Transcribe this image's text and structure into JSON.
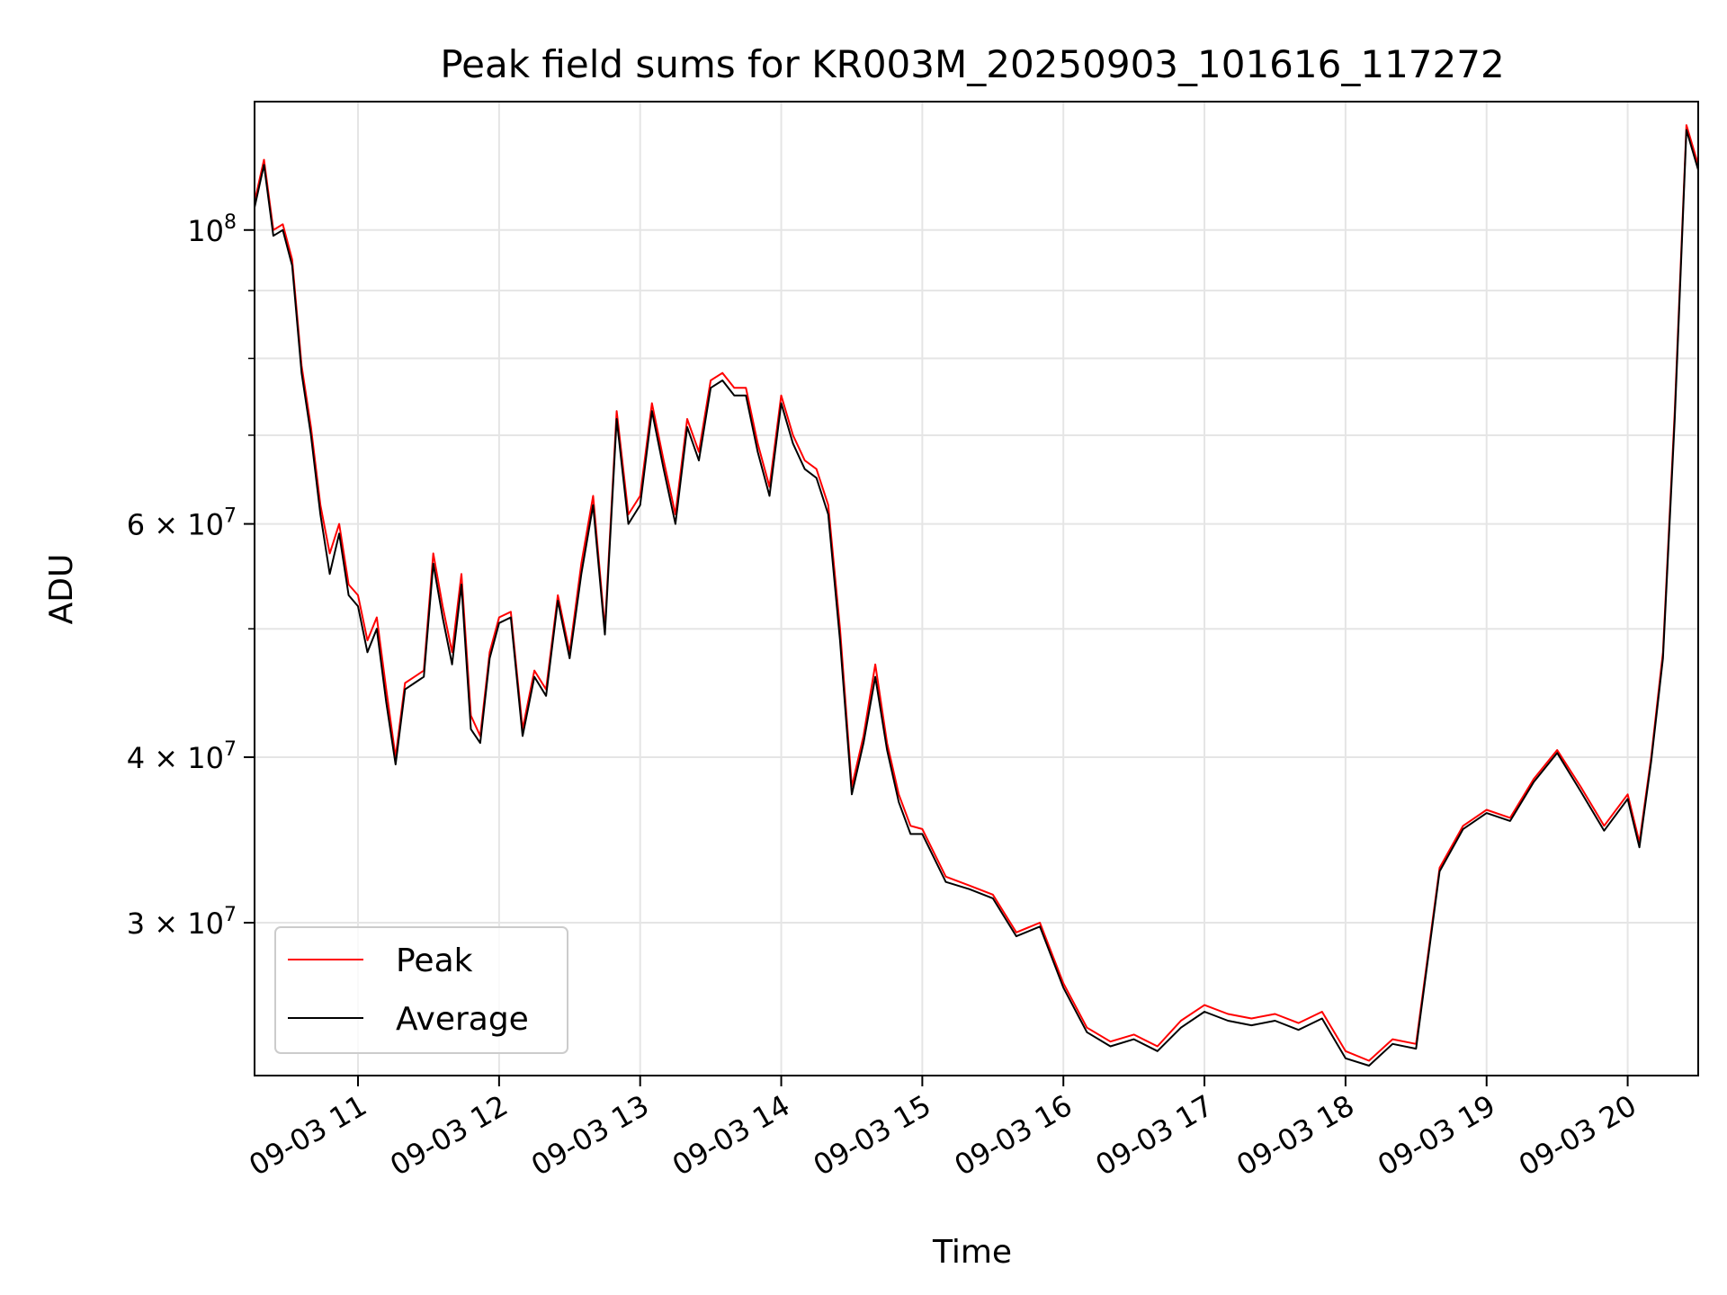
{
  "chart_data": {
    "type": "line",
    "title": "Peak field sums for KR003M_20250903_101616_117272",
    "xlabel": "Time",
    "ylabel": "ADU",
    "yscale": "log",
    "xlim": [
      "09-03 10:16",
      "09-03 20:30"
    ],
    "ylim": [
      23000000,
      125000000
    ],
    "x_tick_labels": [
      "09-03 11",
      "09-03 12",
      "09-03 13",
      "09-03 14",
      "09-03 15",
      "09-03 16",
      "09-03 17",
      "09-03 18",
      "09-03 19",
      "09-03 20"
    ],
    "x_ticks": [
      "09-03 11:00",
      "09-03 12:00",
      "09-03 13:00",
      "09-03 14:00",
      "09-03 15:00",
      "09-03 16:00",
      "09-03 17:00",
      "09-03 18:00",
      "09-03 19:00",
      "09-03 20:00"
    ],
    "y_major_ticks": [
      {
        "value": 30000000,
        "base": "3 × 10",
        "exp": "7"
      },
      {
        "value": 40000000,
        "base": "4 × 10",
        "exp": "7"
      },
      {
        "value": 60000000,
        "base": "6 × 10",
        "exp": "7"
      },
      {
        "value": 100000000,
        "base": "10",
        "exp": "8"
      }
    ],
    "y_minor_ticks": [
      50000000,
      70000000,
      80000000,
      90000000
    ],
    "grid": true,
    "legend_position": "lower-left",
    "series": [
      {
        "name": "Peak",
        "color": "#ff0000"
      },
      {
        "name": "Average",
        "color": "#000000"
      }
    ],
    "x": [
      "09-03 10:16",
      "09-03 10:20",
      "09-03 10:24",
      "09-03 10:28",
      "09-03 10:32",
      "09-03 10:36",
      "09-03 10:40",
      "09-03 10:44",
      "09-03 10:48",
      "09-03 10:52",
      "09-03 10:56",
      "09-03 11:00",
      "09-03 11:04",
      "09-03 11:08",
      "09-03 11:12",
      "09-03 11:16",
      "09-03 11:20",
      "09-03 11:24",
      "09-03 11:28",
      "09-03 11:32",
      "09-03 11:36",
      "09-03 11:40",
      "09-03 11:44",
      "09-03 11:48",
      "09-03 11:52",
      "09-03 11:56",
      "09-03 12:00",
      "09-03 12:05",
      "09-03 12:10",
      "09-03 12:15",
      "09-03 12:20",
      "09-03 12:25",
      "09-03 12:30",
      "09-03 12:35",
      "09-03 12:40",
      "09-03 12:45",
      "09-03 12:50",
      "09-03 12:55",
      "09-03 13:00",
      "09-03 13:05",
      "09-03 13:10",
      "09-03 13:15",
      "09-03 13:20",
      "09-03 13:25",
      "09-03 13:30",
      "09-03 13:35",
      "09-03 13:40",
      "09-03 13:45",
      "09-03 13:50",
      "09-03 13:55",
      "09-03 14:00",
      "09-03 14:05",
      "09-03 14:10",
      "09-03 14:15",
      "09-03 14:20",
      "09-03 14:25",
      "09-03 14:30",
      "09-03 14:35",
      "09-03 14:40",
      "09-03 14:45",
      "09-03 14:50",
      "09-03 14:55",
      "09-03 15:00",
      "09-03 15:10",
      "09-03 15:20",
      "09-03 15:30",
      "09-03 15:40",
      "09-03 15:50",
      "09-03 16:00",
      "09-03 16:10",
      "09-03 16:20",
      "09-03 16:30",
      "09-03 16:40",
      "09-03 16:50",
      "09-03 17:00",
      "09-03 17:10",
      "09-03 17:20",
      "09-03 17:30",
      "09-03 17:40",
      "09-03 17:50",
      "09-03 18:00",
      "09-03 18:10",
      "09-03 18:20",
      "09-03 18:30",
      "09-03 18:40",
      "09-03 18:50",
      "09-03 19:00",
      "09-03 19:10",
      "09-03 19:20",
      "09-03 19:30",
      "09-03 19:40",
      "09-03 19:50",
      "09-03 20:00",
      "09-03 20:05",
      "09-03 20:10",
      "09-03 20:15",
      "09-03 20:20",
      "09-03 20:25",
      "09-03 20:30"
    ],
    "peak": [
      105000000,
      113000000,
      100000000,
      101000000,
      95000000,
      79000000,
      71000000,
      62000000,
      57000000,
      60000000,
      54000000,
      53000000,
      49000000,
      51000000,
      45000000,
      40000000,
      45500000,
      46000000,
      46500000,
      57000000,
      52000000,
      48000000,
      55000000,
      43000000,
      41500000,
      48000000,
      51000000,
      51500000,
      42000000,
      46500000,
      45000000,
      53000000,
      48000000,
      56000000,
      63000000,
      50000000,
      73000000,
      61000000,
      63000000,
      74000000,
      67000000,
      61000000,
      72000000,
      68000000,
      77000000,
      78000000,
      76000000,
      76000000,
      69000000,
      64000000,
      75000000,
      70000000,
      67000000,
      66000000,
      62000000,
      50000000,
      38000000,
      41500000,
      47000000,
      41000000,
      37500000,
      35500000,
      35300000,
      32500000,
      32000000,
      31500000,
      29500000,
      30000000,
      27000000,
      25000000,
      24400000,
      24700000,
      24200000,
      25300000,
      26000000,
      25600000,
      25400000,
      25600000,
      25200000,
      25700000,
      24000000,
      23600000,
      24500000,
      24300000,
      33000000,
      35500000,
      36500000,
      36000000,
      38500000,
      40500000,
      38000000,
      35500000,
      37500000,
      34500000,
      40000000,
      48000000,
      73000000,
      120000000,
      112000000
    ],
    "average": [
      104000000,
      112000000,
      99000000,
      100000000,
      94000000,
      78000000,
      70000000,
      61000000,
      55000000,
      59000000,
      53000000,
      52000000,
      48000000,
      50000000,
      44000000,
      39500000,
      45000000,
      45500000,
      46000000,
      56000000,
      51000000,
      47000000,
      54000000,
      42000000,
      41000000,
      47500000,
      50500000,
      51000000,
      41500000,
      46000000,
      44500000,
      52500000,
      47500000,
      55000000,
      62000000,
      49500000,
      72000000,
      60000000,
      62000000,
      73000000,
      66000000,
      60000000,
      71000000,
      67000000,
      76000000,
      77000000,
      75000000,
      75000000,
      68000000,
      63000000,
      74000000,
      69000000,
      66000000,
      65000000,
      61000000,
      49000000,
      37500000,
      41000000,
      46000000,
      40500000,
      37000000,
      35000000,
      35000000,
      32200000,
      31800000,
      31300000,
      29300000,
      29800000,
      26800000,
      24800000,
      24200000,
      24500000,
      24000000,
      25000000,
      25700000,
      25300000,
      25100000,
      25300000,
      24900000,
      25400000,
      23700000,
      23400000,
      24300000,
      24100000,
      32800000,
      35300000,
      36300000,
      35800000,
      38300000,
      40300000,
      37700000,
      35200000,
      37200000,
      34200000,
      39700000,
      47500000,
      72000000,
      119000000,
      111000000
    ]
  }
}
